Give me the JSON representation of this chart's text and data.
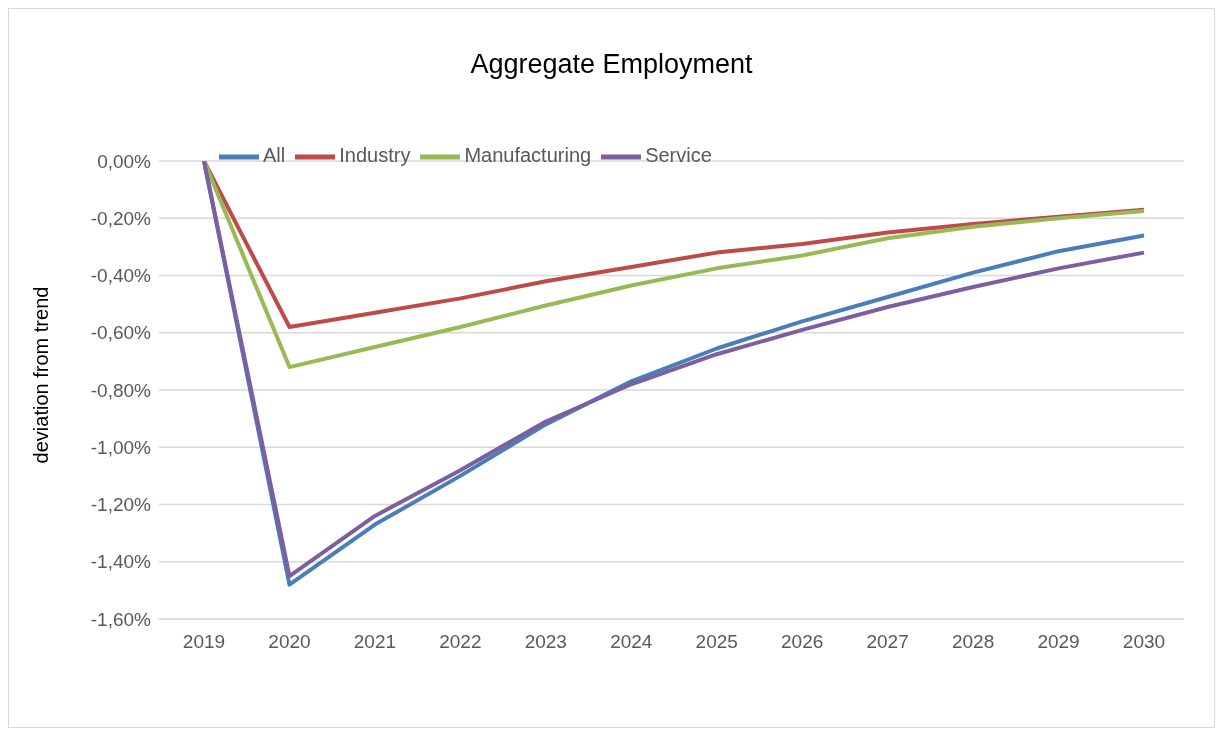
{
  "chart_data": {
    "type": "line",
    "title": "Aggregate Employment",
    "ylabel": "deviation from trend",
    "categories": [
      "2019",
      "2020",
      "2021",
      "2022",
      "2023",
      "2024",
      "2025",
      "2026",
      "2027",
      "2028",
      "2029",
      "2030"
    ],
    "series": [
      {
        "name": "All",
        "color": "#4a7ebb",
        "values": [
          0,
          -1.48,
          -1.27,
          -1.1,
          -0.92,
          -0.77,
          -0.655,
          -0.56,
          -0.475,
          -0.39,
          -0.315,
          -0.26
        ]
      },
      {
        "name": "Industry",
        "color": "#be4b48",
        "values": [
          0,
          -0.58,
          -0.53,
          -0.48,
          -0.42,
          -0.37,
          -0.32,
          -0.29,
          -0.25,
          -0.22,
          -0.195,
          -0.17
        ]
      },
      {
        "name": "Manufacturing",
        "color": "#98b954",
        "values": [
          0,
          -0.72,
          -0.65,
          -0.58,
          -0.505,
          -0.435,
          -0.375,
          -0.33,
          -0.27,
          -0.23,
          -0.2,
          -0.175
        ]
      },
      {
        "name": "Service",
        "color": "#7d5fa0",
        "values": [
          0,
          -1.45,
          -1.24,
          -1.08,
          -0.91,
          -0.78,
          -0.675,
          -0.59,
          -0.51,
          -0.44,
          -0.375,
          -0.32
        ]
      }
    ],
    "ylim": [
      -1.6,
      0
    ],
    "yticks": [
      {
        "value": 0,
        "label": "0,00%"
      },
      {
        "value": -0.2,
        "label": "-0,20%"
      },
      {
        "value": -0.4,
        "label": "-0,40%"
      },
      {
        "value": -0.6,
        "label": "-0,60%"
      },
      {
        "value": -0.8,
        "label": "-0,80%"
      },
      {
        "value": -1.0,
        "label": "-1,00%"
      },
      {
        "value": -1.2,
        "label": "-1,20%"
      },
      {
        "value": -1.4,
        "label": "-1,40%"
      },
      {
        "value": -1.6,
        "label": "-1,60%"
      }
    ],
    "grid": "y",
    "legend": "top",
    "marker": "none",
    "line_style": "solid"
  }
}
